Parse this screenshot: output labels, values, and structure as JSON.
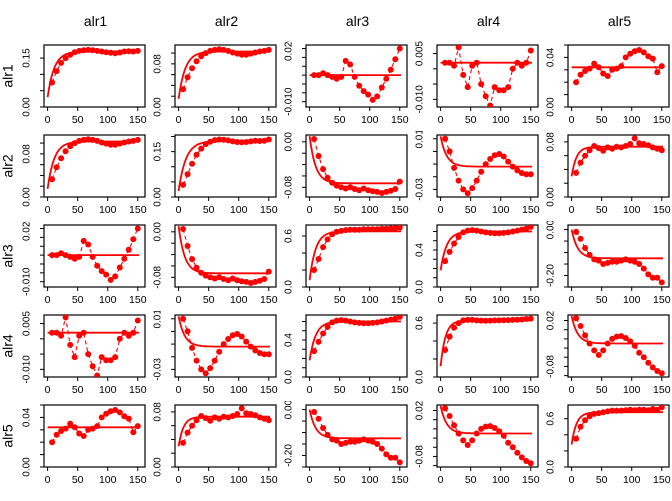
{
  "figure": {
    "background": "#ffffff",
    "series_color": "#ff0000",
    "axis_color": "#000000",
    "description": "5x5 matrix of empirical logratio variograms with fitted model lines"
  },
  "chart_data": {
    "type": "line",
    "subtype": "scatter-line panel matrix with fitted model curves",
    "title": "",
    "columns": [
      "alr1",
      "alr2",
      "alr3",
      "alr4",
      "alr5"
    ],
    "rows": [
      "alr1",
      "alr2",
      "alr3",
      "alr4",
      "alr5"
    ],
    "x_axis": {
      "ticks": [
        0,
        50,
        100,
        150
      ],
      "tick_labels": [
        "0",
        "50",
        "100",
        "150"
      ],
      "range": [
        0,
        150
      ]
    },
    "x_points": [
      7.5,
      15,
      22.5,
      30,
      37.5,
      45,
      52.5,
      60,
      67.5,
      75,
      82.5,
      90,
      97.5,
      105,
      112.5,
      120,
      127.5,
      135,
      142.5,
      150
    ],
    "grid": [
      [
        "p11",
        "p12",
        "p13",
        "p14",
        "p15"
      ],
      [
        "p12",
        "p22",
        "p23",
        "p24",
        "p25"
      ],
      [
        "p13",
        "p23",
        "p33",
        "p34",
        "p35"
      ],
      [
        "p14",
        "p24",
        "p34",
        "p44",
        "p45"
      ],
      [
        "p15",
        "p25",
        "p35",
        "p45",
        "p55"
      ]
    ],
    "panels": {
      "p11": {
        "ylim": [
          0,
          0.19
        ],
        "ytick_values": [
          0,
          0.15
        ],
        "ytick_labels": [
          "0.00",
          "0.15"
        ],
        "ytick_step": 0.05,
        "y": [
          0.075,
          0.11,
          0.135,
          0.15,
          0.16,
          0.168,
          0.172,
          0.174,
          0.175,
          0.174,
          0.172,
          0.17,
          0.168,
          0.166,
          0.165,
          0.167,
          0.17,
          0.171,
          0.17,
          0.172
        ],
        "model": {
          "start": 0.03,
          "sill": 0.17,
          "range": 11
        }
      },
      "p12": {
        "ylim": [
          0,
          0.115
        ],
        "ytick_values": [
          0,
          0.08
        ],
        "ytick_labels": [
          "0.00",
          "0.08"
        ],
        "ytick_step": 0.02,
        "y": [
          0.033,
          0.055,
          0.072,
          0.085,
          0.094,
          0.1,
          0.104,
          0.106,
          0.107,
          0.106,
          0.104,
          0.101,
          0.099,
          0.097,
          0.097,
          0.099,
          0.101,
          0.103,
          0.104,
          0.106
        ],
        "model": {
          "start": 0.015,
          "sill": 0.103,
          "range": 11
        }
      },
      "p13": {
        "ylim": [
          -0.013,
          0.022
        ],
        "ytick_values": [
          -0.01,
          0.02
        ],
        "ytick_labels": [
          "-0.010",
          "0.020"
        ],
        "ytick_step": 0.005,
        "y": [
          0.005,
          0.005,
          0.006,
          0.005,
          0.004,
          0.003,
          0.004,
          0.013,
          0.011,
          0.004,
          -0.001,
          -0.004,
          -0.006,
          -0.009,
          -0.007,
          -0.002,
          0.003,
          0.008,
          0.014,
          0.02
        ],
        "model": {
          "start": 0.005,
          "sill": 0.005,
          "range": 10
        }
      },
      "p14": {
        "ylim": [
          -0.0125,
          0.0078
        ],
        "ytick_values": [
          -0.01,
          0.005
        ],
        "ytick_labels": [
          "-0.010",
          "0.005"
        ],
        "ytick_step": 0.005,
        "y": [
          0.002,
          0.002,
          0.001,
          0.007,
          -0.002,
          -0.006,
          0.001,
          0.002,
          -0.005,
          -0.009,
          -0.012,
          -0.006,
          -0.007,
          -0.007,
          -0.006,
          0.0,
          0.002,
          0.001,
          0.002,
          0.006
        ],
        "model": {
          "start": 0.002,
          "sill": 0.002,
          "range": 10
        }
      },
      "p15": {
        "ylim": [
          0,
          0.05
        ],
        "ytick_values": [
          0,
          0.04
        ],
        "ytick_labels": [
          "0.00",
          "0.04"
        ],
        "ytick_step": 0.01,
        "y": [
          0.02,
          0.026,
          0.029,
          0.031,
          0.035,
          0.032,
          0.027,
          0.025,
          0.03,
          0.031,
          0.033,
          0.04,
          0.043,
          0.045,
          0.046,
          0.044,
          0.041,
          0.039,
          0.028,
          0.033
        ],
        "model": {
          "start": 0.032,
          "sill": 0.032,
          "range": 10
        }
      },
      "p22": {
        "ylim": [
          0,
          0.205
        ],
        "ytick_values": [
          0,
          0.15
        ],
        "ytick_labels": [
          "0.00",
          "0.15"
        ],
        "ytick_step": 0.05,
        "y": [
          0.04,
          0.075,
          0.11,
          0.14,
          0.16,
          0.175,
          0.183,
          0.188,
          0.19,
          0.189,
          0.187,
          0.184,
          0.182,
          0.181,
          0.182,
          0.184,
          0.186,
          0.185,
          0.186,
          0.19
        ],
        "model": {
          "start": 0.02,
          "sill": 0.185,
          "range": 12
        }
      },
      "p23": {
        "ylim": [
          -0.097,
          0.012
        ],
        "ytick_values": [
          -0.08,
          0
        ],
        "ytick_labels": [
          "-0.08",
          "0.00"
        ],
        "ytick_step": 0.02,
        "y": [
          0.005,
          -0.025,
          -0.048,
          -0.063,
          -0.072,
          -0.077,
          -0.08,
          -0.082,
          -0.08,
          -0.083,
          -0.085,
          -0.082,
          -0.085,
          -0.087,
          -0.088,
          -0.09,
          -0.088,
          -0.086,
          -0.083,
          -0.07
        ],
        "model": {
          "start": 0.01,
          "sill": -0.073,
          "range": 10
        }
      },
      "p24": {
        "ylim": [
          -0.036,
          0.013
        ],
        "ytick_values": [
          -0.03,
          0.01
        ],
        "ytick_labels": [
          "-0.03",
          "0.01"
        ],
        "ytick_step": 0.01,
        "y": [
          0.01,
          0.0,
          -0.013,
          -0.023,
          -0.03,
          -0.033,
          -0.029,
          -0.023,
          -0.016,
          -0.01,
          -0.006,
          -0.003,
          -0.002,
          -0.004,
          -0.008,
          -0.012,
          -0.015,
          -0.017,
          -0.018,
          -0.018
        ],
        "model": {
          "start": 0.012,
          "sill": -0.012,
          "range": 10
        }
      },
      "p25": {
        "ylim": [
          0,
          0.09
        ],
        "ytick_values": [
          0,
          0.08
        ],
        "ytick_labels": [
          "0.00",
          "0.08"
        ],
        "ytick_step": 0.02,
        "y": [
          0.035,
          0.05,
          0.06,
          0.068,
          0.074,
          0.071,
          0.067,
          0.072,
          0.07,
          0.073,
          0.072,
          0.074,
          0.077,
          0.085,
          0.078,
          0.077,
          0.075,
          0.072,
          0.07,
          0.068
        ],
        "model": {
          "start": 0.03,
          "sill": 0.073,
          "range": 8
        }
      },
      "p33": {
        "ylim": [
          0,
          0.73
        ],
        "ytick_values": [
          0,
          0.6
        ],
        "ytick_labels": [
          "0.0",
          "0.6"
        ],
        "ytick_step": 0.2,
        "y": [
          0.2,
          0.33,
          0.47,
          0.56,
          0.62,
          0.65,
          0.66,
          0.67,
          0.675,
          0.675,
          0.675,
          0.68,
          0.68,
          0.68,
          0.68,
          0.685,
          0.685,
          0.69,
          0.69,
          0.7
        ],
        "model": {
          "start": 0.08,
          "sill": 0.655,
          "range": 10
        }
      },
      "p34": {
        "ylim": [
          0,
          0.67
        ],
        "ytick_values": [
          0,
          0.4
        ],
        "ytick_labels": [
          "0.0",
          "0.4"
        ],
        "ytick_step": 0.1,
        "y": [
          0.28,
          0.38,
          0.47,
          0.54,
          0.59,
          0.61,
          0.615,
          0.61,
          0.6,
          0.59,
          0.585,
          0.58,
          0.58,
          0.585,
          0.59,
          0.6,
          0.61,
          0.62,
          0.63,
          0.65
        ],
        "model": {
          "start": 0.18,
          "sill": 0.6,
          "range": 10
        }
      },
      "p35": {
        "ylim": [
          -0.25,
          0.02
        ],
        "ytick_values": [
          -0.2,
          0
        ],
        "ytick_labels": [
          "-0.20",
          "0.00"
        ],
        "ytick_step": 0.05,
        "y": [
          -0.01,
          -0.04,
          -0.08,
          -0.11,
          -0.13,
          -0.135,
          -0.15,
          -0.145,
          -0.14,
          -0.14,
          -0.135,
          -0.13,
          -0.135,
          -0.14,
          -0.15,
          -0.17,
          -0.195,
          -0.21,
          -0.21,
          -0.23
        ],
        "model": {
          "start": 0.0,
          "sill": -0.125,
          "range": 10
        }
      },
      "p44": {
        "ylim": [
          0,
          0.69
        ],
        "ytick_values": [
          0,
          0.6
        ],
        "ytick_labels": [
          "0.0",
          "0.6"
        ],
        "ytick_step": 0.2,
        "y": [
          0.3,
          0.45,
          0.55,
          0.6,
          0.63,
          0.635,
          0.635,
          0.63,
          0.628,
          0.627,
          0.628,
          0.63,
          0.63,
          0.632,
          0.633,
          0.635,
          0.638,
          0.64,
          0.645,
          0.65
        ],
        "model": {
          "start": 0.12,
          "sill": 0.63,
          "range": 8
        }
      },
      "p45": {
        "ylim": [
          -0.103,
          0.032
        ],
        "ytick_values": [
          -0.08,
          0.02
        ],
        "ytick_labels": [
          "-0.08",
          "0.02"
        ],
        "ytick_step": 0.02,
        "y": [
          0.025,
          0.008,
          -0.012,
          -0.03,
          -0.045,
          -0.055,
          -0.045,
          -0.03,
          -0.02,
          -0.015,
          -0.014,
          -0.018,
          -0.025,
          -0.035,
          -0.05,
          -0.06,
          -0.072,
          -0.082,
          -0.09,
          -0.095
        ],
        "model": {
          "start": 0.03,
          "sill": -0.03,
          "range": 10
        }
      },
      "p55": {
        "ylim": [
          0,
          0.77
        ],
        "ytick_values": [
          0,
          0.6
        ],
        "ytick_labels": [
          "0.0",
          "0.6"
        ],
        "ytick_step": 0.2,
        "y": [
          0.35,
          0.5,
          0.58,
          0.63,
          0.66,
          0.67,
          0.68,
          0.69,
          0.7,
          0.7,
          0.7,
          0.705,
          0.71,
          0.705,
          0.71,
          0.71,
          0.705,
          0.72,
          0.71,
          0.74
        ],
        "model": {
          "start": 0.28,
          "sill": 0.68,
          "range": 8
        }
      }
    },
    "legend": null,
    "grid_lines": false
  }
}
